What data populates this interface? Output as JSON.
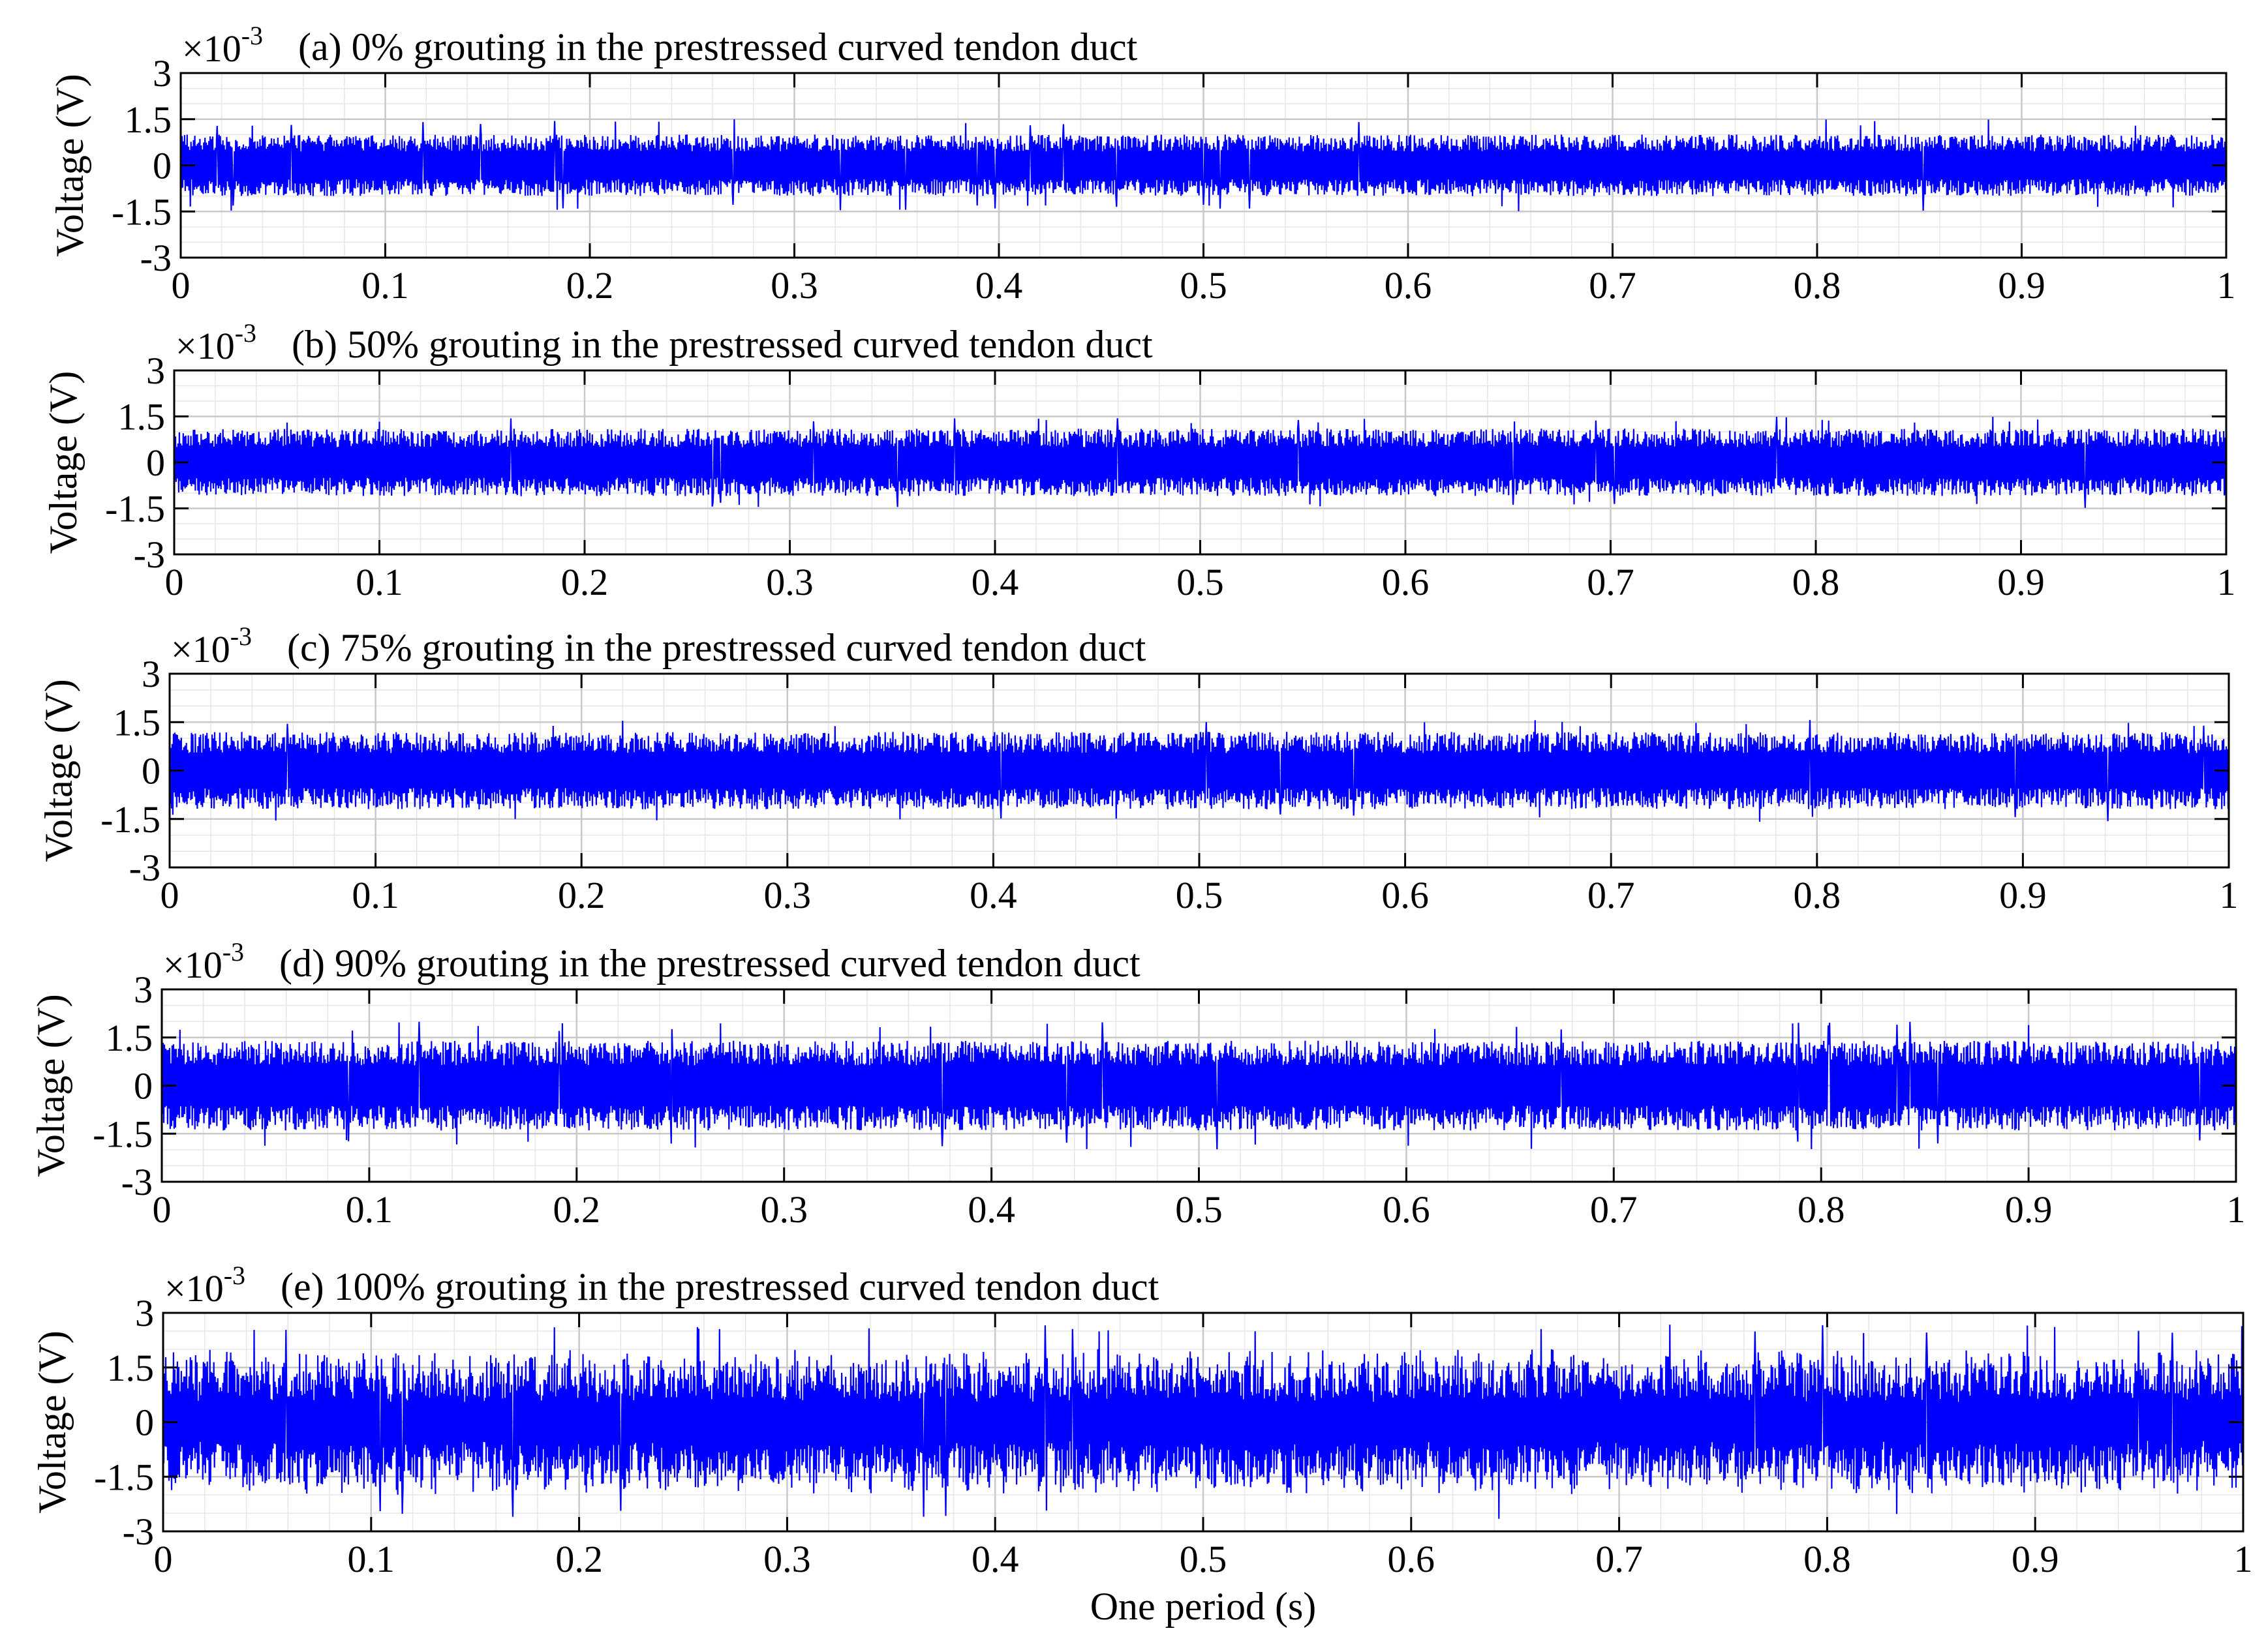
{
  "chart_data": [
    {
      "type": "line",
      "title": "(a) 0% grouting in the prestressed curved tendon duct",
      "ylabel": "Voltage (V)",
      "y_exponent": "×10",
      "y_exponent_power": "-3",
      "x_ticks": [
        "0",
        "0.1",
        "0.2",
        "0.3",
        "0.4",
        "0.5",
        "0.6",
        "0.7",
        "0.8",
        "0.9",
        "1"
      ],
      "y_ticks": [
        "3",
        "1.5",
        "0",
        "-1.5",
        "-3"
      ],
      "xlim": [
        0,
        1
      ],
      "ylim": [
        -3,
        3
      ],
      "grid": true,
      "series": [
        {
          "color": "#0000ff",
          "amplitude_peak": 1.5,
          "amplitude_typical": 1.0,
          "mean": 0
        }
      ]
    },
    {
      "type": "line",
      "title": "(b) 50% grouting in the prestressed curved tendon duct",
      "ylabel": "Voltage (V)",
      "y_exponent": "×10",
      "y_exponent_power": "-3",
      "x_ticks": [
        "0",
        "0.1",
        "0.2",
        "0.3",
        "0.4",
        "0.5",
        "0.6",
        "0.7",
        "0.8",
        "0.9",
        "1"
      ],
      "y_ticks": [
        "3",
        "1.5",
        "0",
        "-1.5",
        "-3"
      ],
      "xlim": [
        0,
        1
      ],
      "ylim": [
        -3,
        3
      ],
      "grid": true,
      "series": [
        {
          "color": "#0000ff",
          "amplitude_peak": 1.5,
          "amplitude_typical": 1.1,
          "mean": 0
        }
      ]
    },
    {
      "type": "line",
      "title": "(c) 75% grouting in the prestressed curved tendon duct",
      "ylabel": "Voltage (V)",
      "y_exponent": "×10",
      "y_exponent_power": "-3",
      "x_ticks": [
        "0",
        "0.1",
        "0.2",
        "0.3",
        "0.4",
        "0.5",
        "0.6",
        "0.7",
        "0.8",
        "0.9",
        "1"
      ],
      "y_ticks": [
        "3",
        "1.5",
        "0",
        "-1.5",
        "-3"
      ],
      "xlim": [
        0,
        1
      ],
      "ylim": [
        -3,
        3
      ],
      "grid": true,
      "series": [
        {
          "color": "#0000ff",
          "amplitude_peak": 1.6,
          "amplitude_typical": 1.2,
          "mean": 0
        }
      ]
    },
    {
      "type": "line",
      "title": "(d) 90% grouting in the prestressed curved tendon duct",
      "ylabel": "Voltage (V)",
      "y_exponent": "×10",
      "y_exponent_power": "-3",
      "x_ticks": [
        "0",
        "0.1",
        "0.2",
        "0.3",
        "0.4",
        "0.5",
        "0.6",
        "0.7",
        "0.8",
        "0.9",
        "1"
      ],
      "y_ticks": [
        "3",
        "1.5",
        "0",
        "-1.5",
        "-3"
      ],
      "xlim": [
        0,
        1
      ],
      "ylim": [
        -3,
        3
      ],
      "grid": true,
      "series": [
        {
          "color": "#0000ff",
          "amplitude_peak": 2.0,
          "amplitude_typical": 1.4,
          "mean": 0
        }
      ]
    },
    {
      "type": "line",
      "title": "(e) 100% grouting in the prestressed curved tendon duct",
      "ylabel": "Voltage (V)",
      "xlabel": "One period (s)",
      "y_exponent": "×10",
      "y_exponent_power": "-3",
      "x_ticks": [
        "0",
        "0.1",
        "0.2",
        "0.3",
        "0.4",
        "0.5",
        "0.6",
        "0.7",
        "0.8",
        "0.9",
        "1"
      ],
      "y_ticks": [
        "3",
        "1.5",
        "0",
        "-1.5",
        "-3"
      ],
      "xlim": [
        0,
        1
      ],
      "ylim": [
        -3,
        3
      ],
      "grid": true,
      "series": [
        {
          "color": "#0000ff",
          "amplitude_peak": 2.7,
          "amplitude_typical": 2.0,
          "mean": 0
        }
      ]
    }
  ]
}
